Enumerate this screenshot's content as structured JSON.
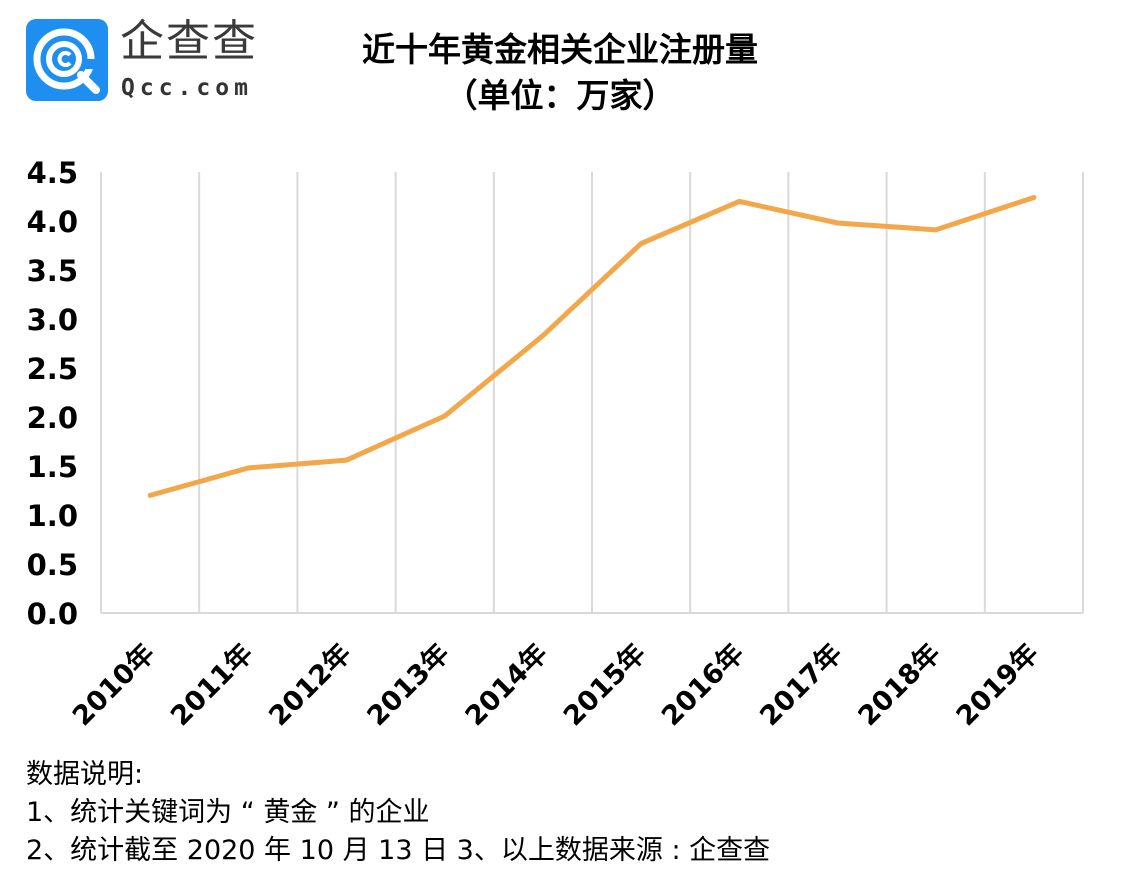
{
  "brand": {
    "name_cn": "企查查",
    "name_en": "Qcc.com",
    "logo_icon": "qcc-logo-icon",
    "logo_color": "#1E8FF0"
  },
  "header": {
    "title": "近十年黄金相关企业注册量",
    "subtitle": "（单位：万家）"
  },
  "chart_data": {
    "type": "line",
    "title": "近十年黄金相关企业注册量（单位：万家）",
    "xlabel": "",
    "ylabel": "万家",
    "categories": [
      "2010年",
      "2011年",
      "2012年",
      "2013年",
      "2014年",
      "2015年",
      "2016年",
      "2017年",
      "2018年",
      "2019年"
    ],
    "series": [
      {
        "name": "黄金相关企业注册量",
        "color": "#F2A74B",
        "values": [
          1.2,
          1.48,
          1.56,
          2.01,
          2.83,
          3.77,
          4.2,
          3.98,
          3.91,
          4.24
        ]
      }
    ],
    "yticks": [
      "0.0",
      "0.5",
      "1.0",
      "1.5",
      "2.0",
      "2.5",
      "3.0",
      "3.5",
      "4.0",
      "4.5"
    ],
    "ylim": [
      0,
      4.5
    ],
    "grid": "vertical",
    "grid_color": "#D9D9D9",
    "legend": "none"
  },
  "notes": {
    "heading": "数据说明:",
    "line1": "1、统计关键词为 “ 黄金 ” 的企业",
    "line2": "2、统计截至 2020 年 10 月 13 日  3、以上数据来源 : 企查查"
  }
}
